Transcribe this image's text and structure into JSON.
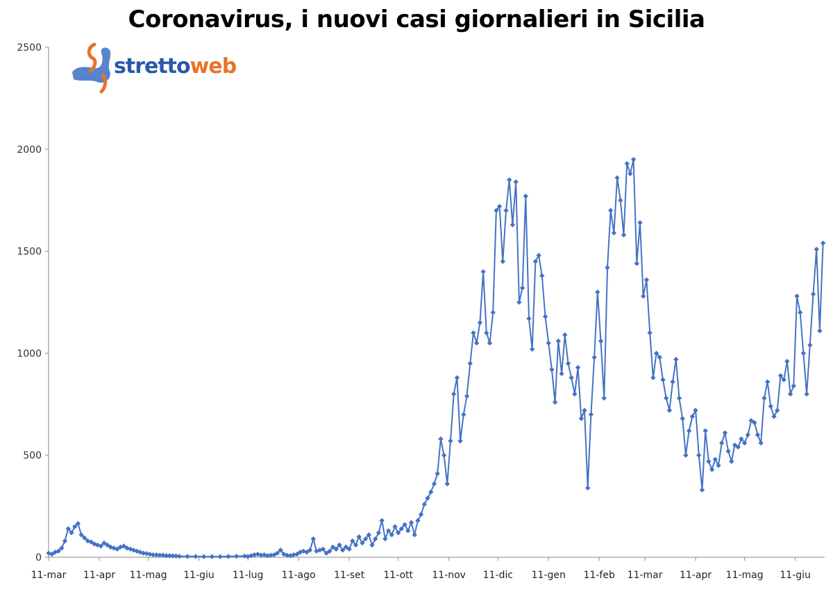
{
  "chart_data": {
    "type": "line",
    "title": "Coronavirus, i nuovi casi giornalieri in Sicilia",
    "xlabel": "",
    "ylabel": "",
    "ylim": [
      0,
      2500
    ],
    "yticks": [
      0,
      500,
      1000,
      1500,
      2000,
      2500
    ],
    "grid": false,
    "legend": "none",
    "series_color": "#4472c4",
    "x_tick_labels": [
      "11-mar",
      "11-apr",
      "11-mag",
      "11-giu",
      "11-lug",
      "11-ago",
      "11-set",
      "11-ott",
      "11-nov",
      "11-dic",
      "11-gen",
      "11-feb",
      "11-mar",
      "11-apr",
      "11-mag",
      "11-giu"
    ],
    "x_tick_positions": [
      0,
      31,
      61,
      92,
      122,
      153,
      184,
      214,
      245,
      275,
      306,
      337,
      365,
      396,
      426,
      457
    ],
    "x_range": [
      0,
      475
    ],
    "series": [
      {
        "name": "",
        "points": [
          [
            0,
            20
          ],
          [
            2,
            15
          ],
          [
            4,
            25
          ],
          [
            6,
            30
          ],
          [
            8,
            45
          ],
          [
            10,
            80
          ],
          [
            12,
            140
          ],
          [
            14,
            120
          ],
          [
            16,
            150
          ],
          [
            18,
            165
          ],
          [
            20,
            110
          ],
          [
            22,
            95
          ],
          [
            24,
            80
          ],
          [
            26,
            75
          ],
          [
            28,
            65
          ],
          [
            30,
            60
          ],
          [
            32,
            55
          ],
          [
            34,
            70
          ],
          [
            36,
            60
          ],
          [
            38,
            50
          ],
          [
            40,
            45
          ],
          [
            42,
            40
          ],
          [
            44,
            50
          ],
          [
            46,
            55
          ],
          [
            48,
            45
          ],
          [
            50,
            40
          ],
          [
            52,
            35
          ],
          [
            54,
            30
          ],
          [
            56,
            25
          ],
          [
            58,
            20
          ],
          [
            60,
            18
          ],
          [
            62,
            15
          ],
          [
            64,
            12
          ],
          [
            66,
            12
          ],
          [
            68,
            10
          ],
          [
            70,
            10
          ],
          [
            72,
            8
          ],
          [
            74,
            8
          ],
          [
            76,
            7
          ],
          [
            78,
            6
          ],
          [
            80,
            5
          ],
          [
            85,
            4
          ],
          [
            90,
            4
          ],
          [
            95,
            3
          ],
          [
            100,
            3
          ],
          [
            105,
            3
          ],
          [
            110,
            4
          ],
          [
            115,
            5
          ],
          [
            120,
            6
          ],
          [
            122,
            4
          ],
          [
            124,
            8
          ],
          [
            126,
            12
          ],
          [
            128,
            15
          ],
          [
            130,
            10
          ],
          [
            132,
            12
          ],
          [
            134,
            8
          ],
          [
            136,
            10
          ],
          [
            138,
            12
          ],
          [
            140,
            20
          ],
          [
            142,
            35
          ],
          [
            144,
            15
          ],
          [
            146,
            10
          ],
          [
            148,
            8
          ],
          [
            150,
            12
          ],
          [
            152,
            15
          ],
          [
            154,
            25
          ],
          [
            156,
            30
          ],
          [
            158,
            25
          ],
          [
            160,
            35
          ],
          [
            162,
            90
          ],
          [
            164,
            30
          ],
          [
            166,
            35
          ],
          [
            168,
            40
          ],
          [
            170,
            20
          ],
          [
            172,
            30
          ],
          [
            174,
            50
          ],
          [
            176,
            40
          ],
          [
            178,
            60
          ],
          [
            180,
            35
          ],
          [
            182,
            50
          ],
          [
            184,
            40
          ],
          [
            186,
            80
          ],
          [
            188,
            60
          ],
          [
            190,
            100
          ],
          [
            192,
            70
          ],
          [
            194,
            90
          ],
          [
            196,
            110
          ],
          [
            198,
            60
          ],
          [
            200,
            90
          ],
          [
            202,
            120
          ],
          [
            204,
            180
          ],
          [
            206,
            90
          ],
          [
            208,
            130
          ],
          [
            210,
            110
          ],
          [
            212,
            150
          ],
          [
            214,
            120
          ],
          [
            216,
            140
          ],
          [
            218,
            160
          ],
          [
            220,
            130
          ],
          [
            222,
            170
          ],
          [
            224,
            110
          ],
          [
            226,
            180
          ],
          [
            228,
            210
          ],
          [
            230,
            260
          ],
          [
            232,
            290
          ],
          [
            234,
            320
          ],
          [
            236,
            360
          ],
          [
            238,
            410
          ],
          [
            240,
            580
          ],
          [
            242,
            500
          ],
          [
            244,
            360
          ],
          [
            246,
            570
          ],
          [
            248,
            800
          ],
          [
            250,
            880
          ],
          [
            252,
            570
          ],
          [
            254,
            700
          ],
          [
            256,
            790
          ],
          [
            258,
            950
          ],
          [
            260,
            1100
          ],
          [
            262,
            1050
          ],
          [
            264,
            1150
          ],
          [
            266,
            1400
          ],
          [
            268,
            1100
          ],
          [
            270,
            1050
          ],
          [
            272,
            1200
          ],
          [
            274,
            1700
          ],
          [
            276,
            1720
          ],
          [
            278,
            1450
          ],
          [
            280,
            1700
          ],
          [
            282,
            1850
          ],
          [
            284,
            1630
          ],
          [
            286,
            1840
          ],
          [
            288,
            1250
          ],
          [
            290,
            1320
          ],
          [
            292,
            1770
          ],
          [
            294,
            1170
          ],
          [
            296,
            1020
          ],
          [
            298,
            1450
          ],
          [
            300,
            1480
          ],
          [
            302,
            1380
          ],
          [
            304,
            1180
          ],
          [
            306,
            1050
          ],
          [
            308,
            920
          ],
          [
            310,
            760
          ],
          [
            312,
            1060
          ],
          [
            314,
            900
          ],
          [
            316,
            1090
          ],
          [
            318,
            950
          ],
          [
            320,
            880
          ],
          [
            322,
            800
          ],
          [
            324,
            930
          ],
          [
            326,
            680
          ],
          [
            328,
            720
          ],
          [
            330,
            340
          ],
          [
            332,
            700
          ],
          [
            334,
            980
          ],
          [
            336,
            1300
          ],
          [
            338,
            1060
          ],
          [
            340,
            780
          ],
          [
            342,
            1420
          ],
          [
            344,
            1700
          ],
          [
            346,
            1590
          ],
          [
            348,
            1860
          ],
          [
            350,
            1750
          ],
          [
            352,
            1580
          ],
          [
            354,
            1930
          ],
          [
            356,
            1880
          ],
          [
            358,
            1950
          ],
          [
            360,
            1440
          ],
          [
            362,
            1640
          ],
          [
            364,
            1280
          ],
          [
            366,
            1360
          ],
          [
            368,
            1100
          ],
          [
            370,
            880
          ],
          [
            372,
            1000
          ],
          [
            374,
            980
          ],
          [
            376,
            870
          ],
          [
            378,
            780
          ],
          [
            380,
            720
          ],
          [
            382,
            860
          ],
          [
            384,
            970
          ],
          [
            386,
            780
          ],
          [
            388,
            680
          ],
          [
            390,
            500
          ],
          [
            392,
            620
          ],
          [
            394,
            690
          ],
          [
            396,
            720
          ],
          [
            398,
            500
          ],
          [
            400,
            330
          ],
          [
            402,
            620
          ],
          [
            404,
            470
          ],
          [
            406,
            430
          ],
          [
            408,
            480
          ],
          [
            410,
            450
          ],
          [
            412,
            560
          ],
          [
            414,
            610
          ],
          [
            416,
            520
          ],
          [
            418,
            470
          ],
          [
            420,
            550
          ],
          [
            422,
            540
          ],
          [
            424,
            580
          ],
          [
            426,
            560
          ],
          [
            428,
            600
          ],
          [
            430,
            670
          ],
          [
            432,
            660
          ],
          [
            434,
            600
          ],
          [
            436,
            560
          ],
          [
            438,
            780
          ],
          [
            440,
            860
          ],
          [
            442,
            740
          ],
          [
            444,
            690
          ],
          [
            446,
            720
          ],
          [
            448,
            890
          ],
          [
            450,
            870
          ],
          [
            452,
            960
          ],
          [
            454,
            800
          ],
          [
            456,
            840
          ],
          [
            458,
            1280
          ],
          [
            460,
            1200
          ],
          [
            462,
            1000
          ],
          [
            464,
            800
          ],
          [
            466,
            1040
          ],
          [
            468,
            1290
          ],
          [
            470,
            1510
          ],
          [
            472,
            1110
          ],
          [
            474,
            1540
          ]
        ]
      }
    ]
  },
  "logo": {
    "text_a": "stretto",
    "text_b": "web"
  }
}
